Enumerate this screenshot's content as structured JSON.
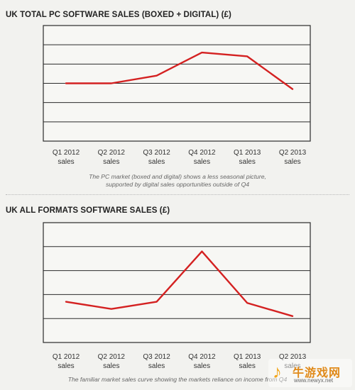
{
  "charts": [
    {
      "title": "UK TOTAL PC SOFTWARE SALES (BOXED + DIGITAL) (£)",
      "caption_lines": [
        "The PC market (boxed and digital) shows a less seasonal picture,",
        "supported by digital sales opportunities outside of Q4"
      ]
    },
    {
      "title": "UK ALL FORMATS SOFTWARE SALES (£)",
      "caption_lines": [
        "The familiar market sales curve showing the markets reliance on income from Q4"
      ]
    }
  ],
  "chart_data": [
    {
      "type": "line",
      "title": "UK TOTAL PC SOFTWARE SALES (BOXED + DIGITAL) (£)",
      "categories": [
        "Q1 2012 sales",
        "Q2 2012 sales",
        "Q3 2012 sales",
        "Q4 2012 sales",
        "Q1 2013 sales",
        "Q2 2013 sales"
      ],
      "tick_lines": [
        [
          "Q1 2012",
          "sales"
        ],
        [
          "Q2 2012",
          "sales"
        ],
        [
          "Q3 2012",
          "sales"
        ],
        [
          "Q4 2012",
          "sales"
        ],
        [
          "Q1 2013",
          "sales"
        ],
        [
          "Q2 2013",
          "sales"
        ]
      ],
      "values": [
        3.0,
        3.0,
        3.4,
        4.6,
        4.4,
        2.7
      ],
      "ylim": [
        0,
        6
      ],
      "y_gridlines": 6,
      "grid": true,
      "line_color": "#d42121"
    },
    {
      "type": "line",
      "title": "UK ALL FORMATS SOFTWARE SALES (£)",
      "categories": [
        "Q1 2012 sales",
        "Q2 2012 sales",
        "Q3 2012 sales",
        "Q4 2012 sales",
        "Q1 2013 sales",
        "Q2 2013 sales"
      ],
      "tick_lines": [
        [
          "Q1 2012",
          "sales"
        ],
        [
          "Q2 2012",
          "sales"
        ],
        [
          "Q3 2012",
          "sales"
        ],
        [
          "Q4 2012",
          "sales"
        ],
        [
          "Q1 2013",
          "sales"
        ],
        [
          "Q2 2013",
          "sales"
        ]
      ],
      "values": [
        1.7,
        1.4,
        1.7,
        3.8,
        1.65,
        1.1
      ],
      "ylim": [
        0,
        5
      ],
      "y_gridlines": 5,
      "grid": true,
      "line_color": "#d42121"
    }
  ],
  "watermark": {
    "glyph": "♪",
    "text": "牛游戏网",
    "url": "www.newyx.net"
  }
}
